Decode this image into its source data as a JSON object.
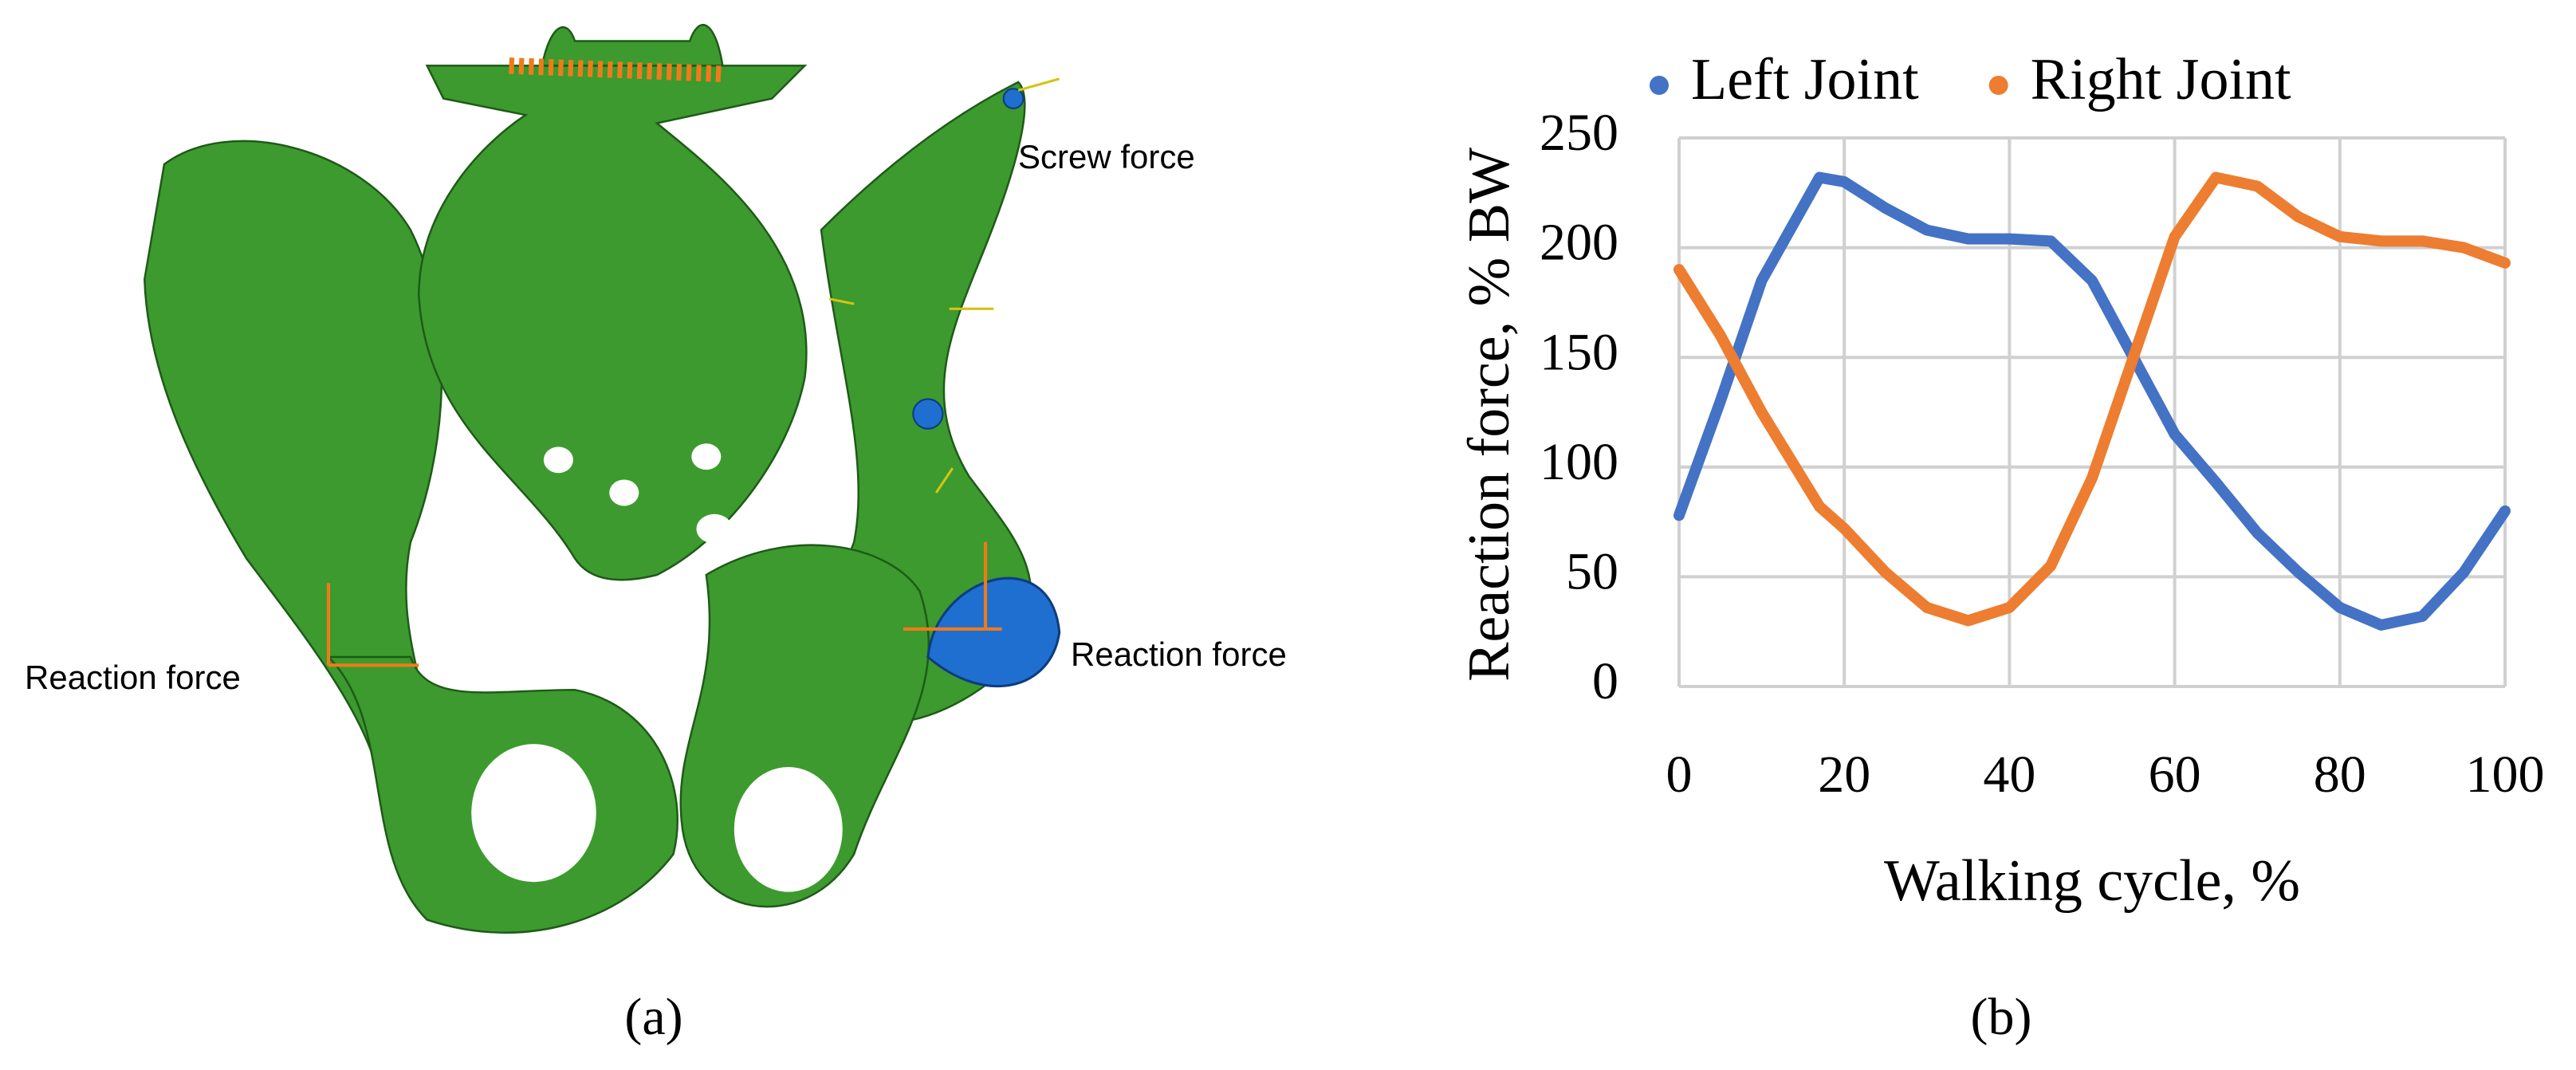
{
  "panel_a": {
    "labels": [
      "Screw force",
      "Reaction force",
      "Reaction force"
    ],
    "caption": "(a)"
  },
  "chart_data": {
    "type": "line",
    "xlabel": "Walking cycle, %",
    "ylabel": "Reaction force, % BW",
    "caption": "(b)",
    "x": [
      0,
      5,
      10,
      17,
      20,
      25,
      30,
      35,
      40,
      45,
      50,
      55,
      60,
      65,
      70,
      75,
      80,
      85,
      90,
      95,
      100
    ],
    "series": [
      {
        "name": "Left Joint",
        "color": "#4472c4",
        "values": [
          78,
          130,
          185,
          232,
          230,
          218,
          208,
          204,
          204,
          203,
          185,
          150,
          115,
          93,
          70,
          52,
          36,
          28,
          32,
          52,
          80
        ]
      },
      {
        "name": "Right Joint",
        "color": "#ed7d31",
        "values": [
          190,
          160,
          125,
          82,
          72,
          52,
          36,
          30,
          36,
          55,
          95,
          150,
          205,
          232,
          228,
          214,
          205,
          203,
          203,
          200,
          193
        ]
      }
    ],
    "xlim": [
      0,
      100
    ],
    "xticks": [
      0,
      20,
      40,
      60,
      80,
      100
    ],
    "ylim": [
      0,
      250
    ],
    "yticks": [
      0,
      50,
      100,
      150,
      200,
      250
    ],
    "grid": true,
    "legend": "top"
  }
}
